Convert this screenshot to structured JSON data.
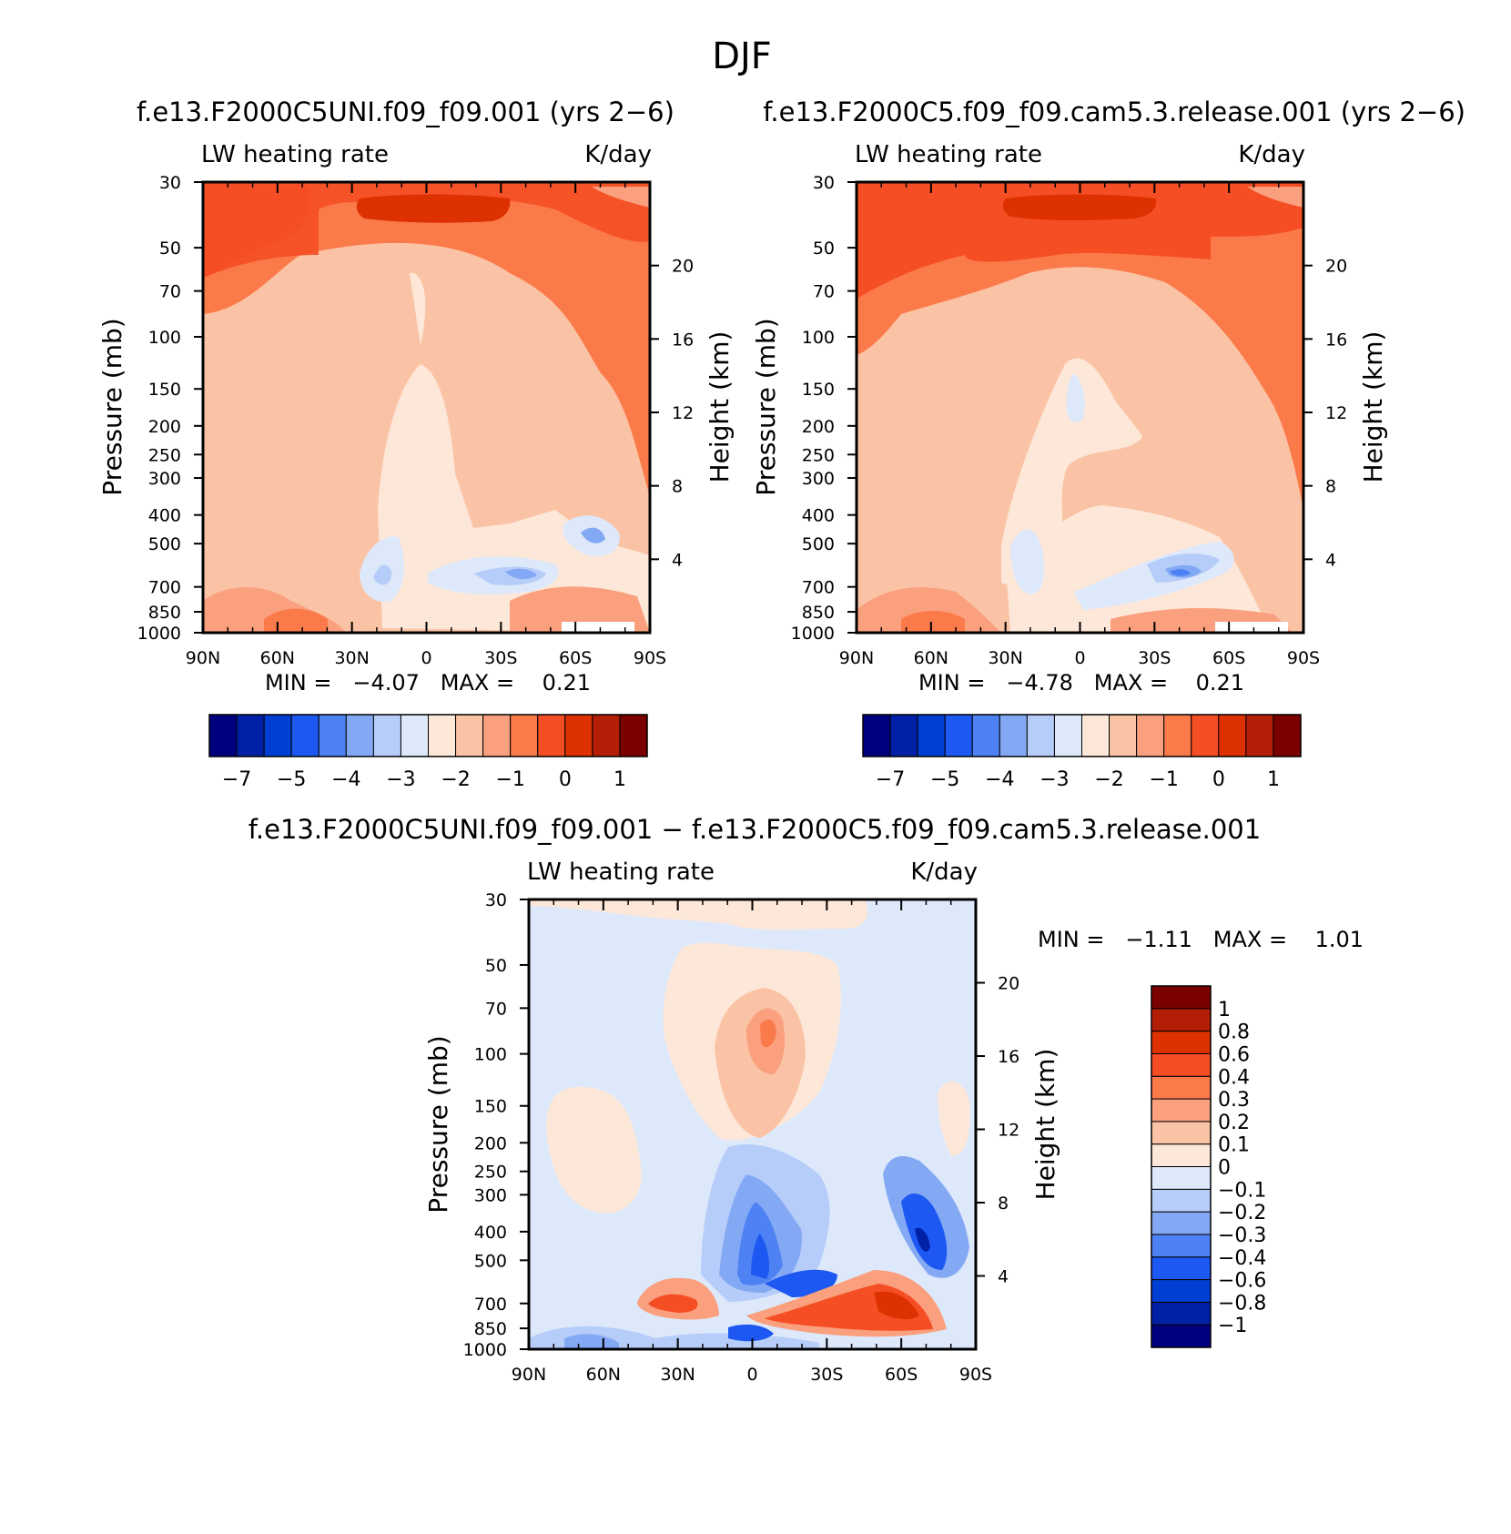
{
  "page_title": "DJF",
  "chart_data": [
    {
      "type": "contour",
      "case_title": "f.e13.F2000C5UNI.f09_f09.001 (yrs 2−6)",
      "variable_label": "LW heating rate",
      "units_label": "K/day",
      "ylabel": "Pressure (mb)",
      "y2label": "Height (km)",
      "x_ticks": [
        "90N",
        "60N",
        "30N",
        "0",
        "30S",
        "60S",
        "90S"
      ],
      "x_range": [
        90,
        -90
      ],
      "pressure_ticks": [
        30,
        50,
        70,
        100,
        150,
        200,
        250,
        300,
        400,
        500,
        700,
        850,
        1000
      ],
      "pressure_tick_labels": [
        "30",
        "50",
        "70",
        "100",
        "150",
        "200",
        "250",
        "300",
        "400",
        "500",
        "700",
        "850",
        "1000"
      ],
      "height_ticks_km": [
        20,
        16,
        12,
        8,
        4
      ],
      "stats_text": "MIN =   −4.07   MAX =    0.21",
      "min": -4.07,
      "max": 0.21,
      "colorbar": {
        "orientation": "horizontal",
        "colors": [
          "#00007f",
          "#0021a6",
          "#003fd3",
          "#1c58f1",
          "#4e82f4",
          "#84a9f4",
          "#b7cdf9",
          "#dde9fb",
          "#fde7d8",
          "#fbc3a5",
          "#faa07e",
          "#fb7a4a",
          "#f54e24",
          "#de3102",
          "#b21e06",
          "#7b0100"
        ],
        "tick_labels": [
          "−7",
          "−5",
          "−4",
          "−3",
          "−2",
          "−1",
          "0",
          "1"
        ]
      }
    },
    {
      "type": "contour",
      "case_title": "f.e13.F2000C5.f09_f09.cam5.3.release.001 (yrs 2−6)",
      "variable_label": "LW heating rate",
      "units_label": "K/day",
      "ylabel": "Pressure (mb)",
      "y2label": "Height (km)",
      "x_ticks": [
        "90N",
        "60N",
        "30N",
        "0",
        "30S",
        "60S",
        "90S"
      ],
      "x_range": [
        90,
        -90
      ],
      "pressure_ticks": [
        30,
        50,
        70,
        100,
        150,
        200,
        250,
        300,
        400,
        500,
        700,
        850,
        1000
      ],
      "pressure_tick_labels": [
        "30",
        "50",
        "70",
        "100",
        "150",
        "200",
        "250",
        "300",
        "400",
        "500",
        "700",
        "850",
        "1000"
      ],
      "height_ticks_km": [
        20,
        16,
        12,
        8,
        4
      ],
      "stats_text": "MIN =   −4.78   MAX =    0.21",
      "min": -4.78,
      "max": 0.21,
      "colorbar": {
        "orientation": "horizontal",
        "colors": [
          "#00007f",
          "#0021a6",
          "#003fd3",
          "#1c58f1",
          "#4e82f4",
          "#84a9f4",
          "#b7cdf9",
          "#dde9fb",
          "#fde7d8",
          "#fbc3a5",
          "#faa07e",
          "#fb7a4a",
          "#f54e24",
          "#de3102",
          "#b21e06",
          "#7b0100"
        ],
        "tick_labels": [
          "−7",
          "−5",
          "−4",
          "−3",
          "−2",
          "−1",
          "0",
          "1"
        ]
      }
    },
    {
      "type": "contour",
      "case_title": "f.e13.F2000C5UNI.f09_f09.001 − f.e13.F2000C5.f09_f09.cam5.3.release.001",
      "variable_label": "LW heating rate",
      "units_label": "K/day",
      "ylabel": "Pressure (mb)",
      "y2label": "Height (km)",
      "x_ticks": [
        "90N",
        "60N",
        "30N",
        "0",
        "30S",
        "60S",
        "90S"
      ],
      "x_range": [
        90,
        -90
      ],
      "pressure_ticks": [
        30,
        50,
        70,
        100,
        150,
        200,
        250,
        300,
        400,
        500,
        700,
        850,
        1000
      ],
      "pressure_tick_labels": [
        "30",
        "50",
        "70",
        "100",
        "150",
        "200",
        "250",
        "300",
        "400",
        "500",
        "700",
        "850",
        "1000"
      ],
      "height_ticks_km": [
        20,
        16,
        12,
        8,
        4
      ],
      "stats_text": "MIN =   −1.11   MAX =    1.01",
      "min": -1.11,
      "max": 1.01,
      "colorbar": {
        "orientation": "vertical",
        "colors": [
          "#00007f",
          "#0021a6",
          "#003fd3",
          "#1c58f1",
          "#4e82f4",
          "#84a9f4",
          "#b7cdf9",
          "#dde9fb",
          "#fde7d8",
          "#fbc3a5",
          "#faa07e",
          "#fb7a4a",
          "#f54e24",
          "#de3102",
          "#b21e06",
          "#7b0100"
        ],
        "tick_labels": [
          "−1",
          "−0.8",
          "−0.6",
          "−0.4",
          "−0.3",
          "−0.2",
          "−0.1",
          "0",
          "0.1",
          "0.2",
          "0.3",
          "0.4",
          "0.6",
          "0.8",
          "1"
        ]
      }
    }
  ]
}
